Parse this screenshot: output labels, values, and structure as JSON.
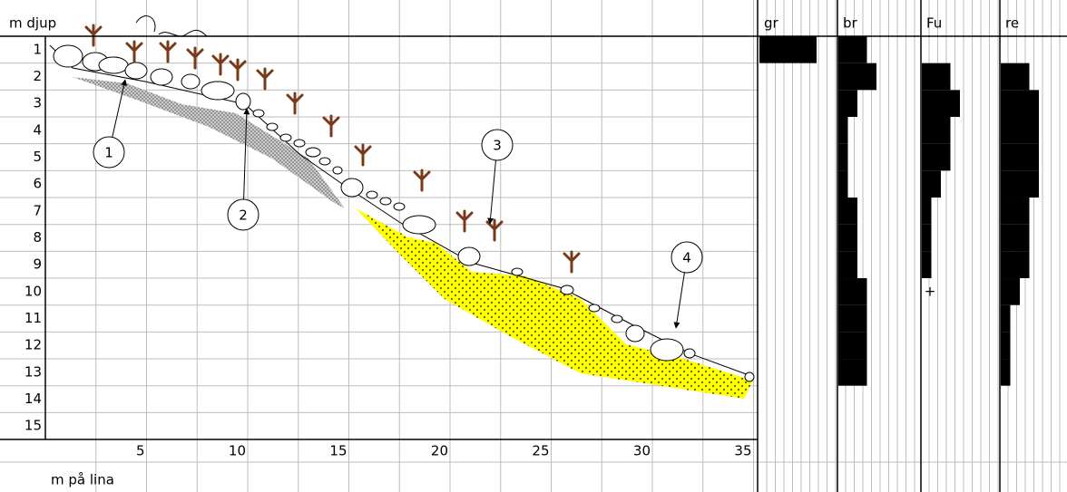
{
  "y_axis_label": "m djup",
  "x_axis_label": "m på lina",
  "depths": [
    "1",
    "2",
    "3",
    "4",
    "5",
    "6",
    "7",
    "8",
    "9",
    "10",
    "11",
    "12",
    "13",
    "14",
    "15"
  ],
  "distances": [
    "5",
    "10",
    "15",
    "20",
    "25",
    "30",
    "35"
  ],
  "callouts": [
    "1",
    "2",
    "3",
    "4"
  ],
  "panels": [
    {
      "label": "gr",
      "values": [
        6,
        null,
        null,
        null,
        null,
        null,
        null,
        null,
        null,
        null,
        null,
        null,
        null,
        null,
        null
      ]
    },
    {
      "label": "br",
      "values": [
        3,
        4,
        2,
        1,
        1,
        1,
        2,
        2,
        2,
        3,
        3,
        3,
        3,
        null,
        null
      ]
    },
    {
      "label": "Fu",
      "values": [
        null,
        3,
        4,
        3,
        3,
        2,
        1,
        1,
        1,
        null,
        null,
        null,
        null,
        null,
        null
      ],
      "value_labels": [
        null,
        null,
        null,
        null,
        null,
        null,
        null,
        null,
        null,
        "+",
        null,
        null,
        null,
        null,
        null
      ]
    },
    {
      "label": "re",
      "values": [
        null,
        3,
        4,
        4,
        4,
        4,
        3,
        3,
        3,
        2,
        1,
        1,
        1,
        null,
        null
      ]
    }
  ]
}
